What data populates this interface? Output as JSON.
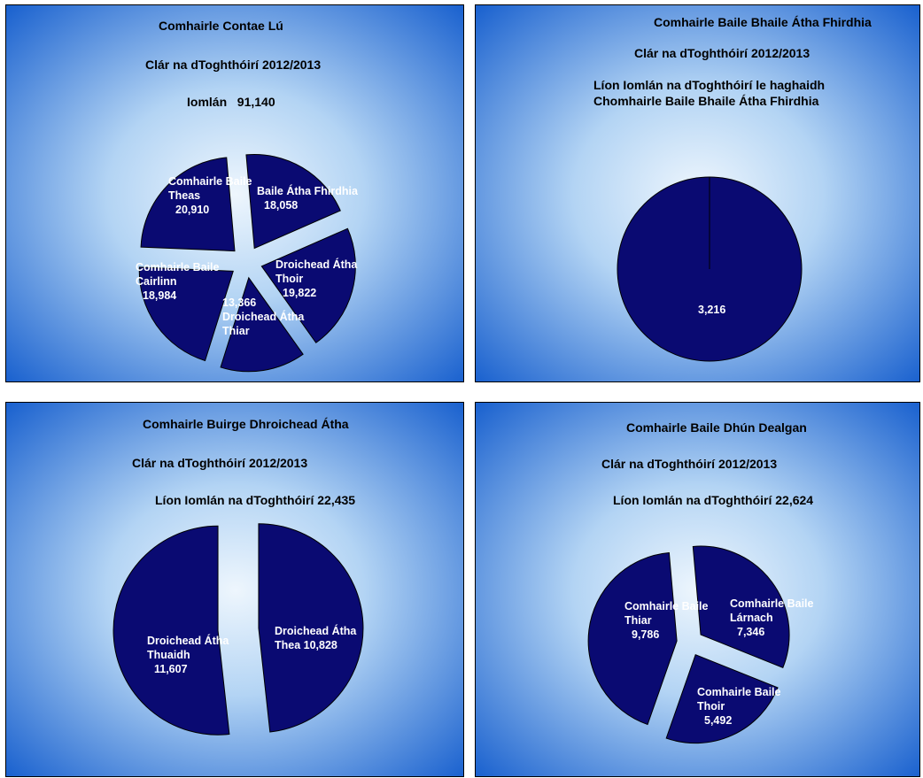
{
  "colors": {
    "slice": "#0a0a72",
    "slice_stroke": "#ffffff",
    "bg_light": "#e8f3fc",
    "bg_dark": "#1a63d2"
  },
  "panels": [
    {
      "title": "Comhairle Contae Lú",
      "subtitle": "Clár na dToghthóirí 2012/2013",
      "line3": "Iomlán   91,140"
    },
    {
      "title": "Comhairle Baile Bhaile Átha Fhirdhia",
      "subtitle": "Clár na dToghthóirí 2012/2013",
      "line3a": "Líon Iomlán na dToghthóirí le haghaidh",
      "line3b": "Chomhairle Baile Bhaile Átha Fhirdhia"
    },
    {
      "title": "Comhairle Buirge Dhroichead Átha",
      "subtitle": "Clár na dToghthóirí 2012/2013",
      "line3": "Líon Iomlán na dToghthóirí 22,435"
    },
    {
      "title": "Comhairle Baile Dhún Dealgan",
      "subtitle": "Clár na dToghthóirí 2012/2013",
      "line3": "Líon Iomlán na dToghthóirí 22,624"
    }
  ],
  "chart_data": [
    {
      "type": "pie",
      "title": "Comhairle Contae Lú",
      "categories": [
        "Baile Átha Fhirdhia",
        "Droichead Átha Thoir",
        "Droichead Átha Thiar",
        "Comhairle Baile Cairlinn",
        "Comhairle Baile Theas"
      ],
      "values": [
        18058,
        19822,
        13366,
        18984,
        20910
      ],
      "labels": [
        [
          "Baile Átha Fhirdhia",
          "18,058"
        ],
        [
          "Droichead Átha",
          "Thoir",
          "19,822"
        ],
        [
          "13,366",
          "Droichead Átha",
          "Thiar"
        ],
        [
          "Comhairle Baile",
          "Cairlinn",
          "18,984"
        ],
        [
          "Comhairle Baile",
          "Theas",
          "20,910"
        ]
      ]
    },
    {
      "type": "pie",
      "title": "Comhairle Baile Bhaile Átha Fhirdhia",
      "categories": [
        ""
      ],
      "values": [
        3216
      ],
      "labels": [
        [
          "3,216"
        ]
      ]
    },
    {
      "type": "pie",
      "title": "Comhairle Buirge Dhroichead Átha",
      "categories": [
        "Droichead Átha Thea",
        "Droichead Átha Thuaidh"
      ],
      "values": [
        10828,
        11607
      ],
      "labels": [
        [
          "Droichead Átha",
          "Thea  10,828"
        ],
        [
          "Droichead Átha",
          "Thuaidh",
          "11,607"
        ]
      ]
    },
    {
      "type": "pie",
      "title": "Comhairle Baile Dhún Dealgan",
      "categories": [
        "Comhairle Baile Lárnach",
        "Comhairle Baile Thoir",
        "Comhairle Baile Thiar"
      ],
      "values": [
        7346,
        5492,
        9786
      ],
      "labels": [
        [
          "Comhairle Baile",
          "Lárnach",
          "7,346"
        ],
        [
          "Comhairle Baile",
          "Thoir",
          "5,492"
        ],
        [
          "Comhairle Baile",
          "Thiar",
          "9,786"
        ]
      ]
    }
  ]
}
